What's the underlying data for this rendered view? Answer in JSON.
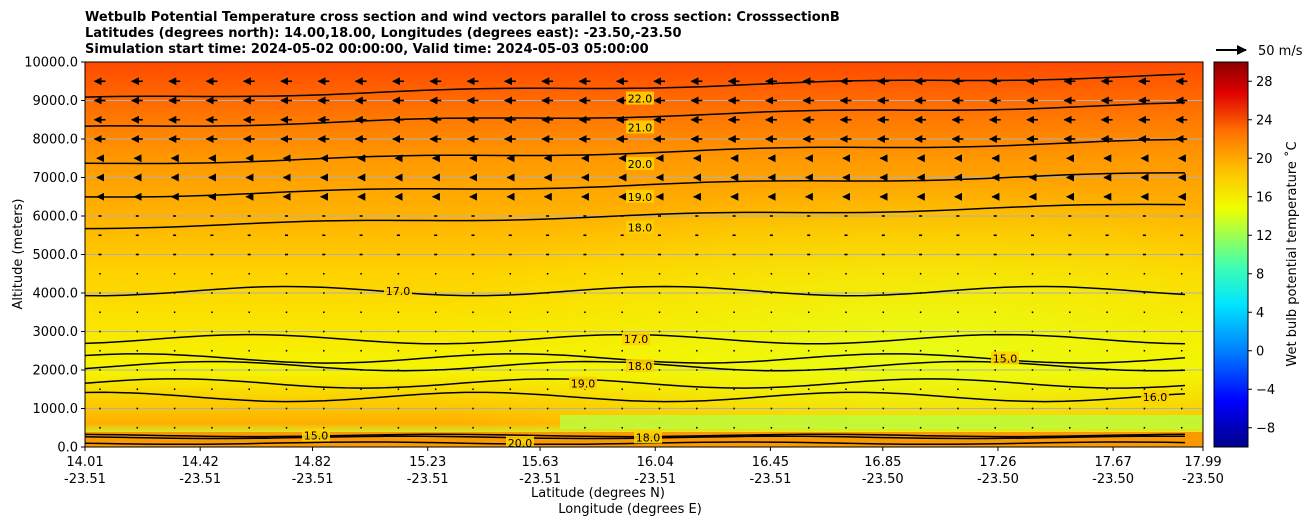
{
  "chart_data": {
    "type": "heatmap",
    "title_lines": [
      "Wetbulb Potential Temperature cross section and wind vectors parallel to cross section: CrosssectionB",
      "Latitudes (degrees north): 14.00,18.00, Longitudes (degrees east): -23.50,-23.50",
      "Simulation start time: 2024-05-02 00:00:00, Valid time: 2024-05-03 05:00:00"
    ],
    "xlabel": "Latitude (degrees N)",
    "xlabel2": "Longitude (degrees E)",
    "ylabel": "Altitude (meters)",
    "ylim": [
      0,
      10000
    ],
    "xlim": [
      14.01,
      17.99
    ],
    "y_ticks": [
      "0.0",
      "1000.0",
      "2000.0",
      "3000.0",
      "4000.0",
      "5000.0",
      "6000.0",
      "7000.0",
      "8000.0",
      "9000.0",
      "10000.0"
    ],
    "y_tick_values": [
      0,
      1000,
      2000,
      3000,
      4000,
      5000,
      6000,
      7000,
      8000,
      9000,
      10000
    ],
    "x_ticks": [
      {
        "lat": "14.01",
        "lon": "-23.51",
        "v": 14.01
      },
      {
        "lat": "14.42",
        "lon": "-23.51",
        "v": 14.42
      },
      {
        "lat": "14.82",
        "lon": "-23.51",
        "v": 14.82
      },
      {
        "lat": "15.23",
        "lon": "-23.51",
        "v": 15.23
      },
      {
        "lat": "15.63",
        "lon": "-23.51",
        "v": 15.63
      },
      {
        "lat": "16.04",
        "lon": "-23.51",
        "v": 16.04
      },
      {
        "lat": "16.45",
        "lon": "-23.51",
        "v": 16.45
      },
      {
        "lat": "16.85",
        "lon": "-23.50",
        "v": 16.85
      },
      {
        "lat": "17.26",
        "lon": "-23.50",
        "v": 17.26
      },
      {
        "lat": "17.67",
        "lon": "-23.50",
        "v": 17.67
      },
      {
        "lat": "17.99",
        "lon": "-23.50",
        "v": 17.99
      }
    ],
    "colorbar": {
      "label": "Wet bulb potential temperature ˚C",
      "range": [
        -10,
        30
      ],
      "ticks": [
        "−8",
        "−4",
        "0",
        "4",
        "8",
        "12",
        "16",
        "20",
        "24",
        "28"
      ],
      "tick_values": [
        -8,
        -4,
        0,
        4,
        8,
        12,
        16,
        20,
        24,
        28
      ]
    },
    "quiver_key": "50 m/s",
    "contours": [
      {
        "level": "22.0",
        "alt": 9050
      },
      {
        "level": "21.0",
        "alt": 8300
      },
      {
        "level": "20.0",
        "alt": 7350
      },
      {
        "level": "19.0",
        "alt": 6500
      },
      {
        "level": "18.0",
        "alt": 5700
      },
      {
        "level": "17.0",
        "alt": 4050
      },
      {
        "level": "17.0",
        "alt": 2800
      },
      {
        "level": "18.0",
        "alt": 2100
      },
      {
        "level": "19.0",
        "alt": 1650
      },
      {
        "level": "15.0",
        "alt": 2300
      },
      {
        "level": "16.0",
        "alt": 1300
      },
      {
        "level": "15.0",
        "alt": 300
      },
      {
        "level": "18.0",
        "alt": 250
      },
      {
        "level": "20.0",
        "alt": 100
      }
    ]
  }
}
